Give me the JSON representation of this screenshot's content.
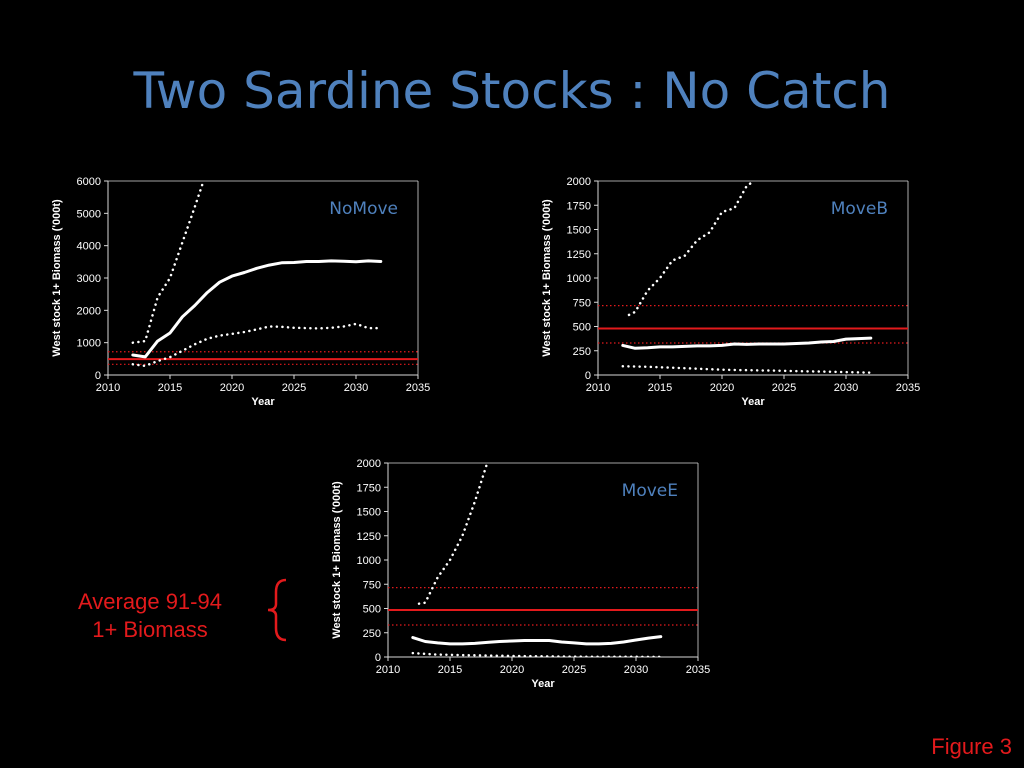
{
  "slide": {
    "title": "Two Sardine Stocks : No Catch",
    "annotation_line1": "Average 91-94",
    "annotation_line2": "1+ Biomass",
    "figure_label": "Figure 3"
  },
  "colors": {
    "background": "#000000",
    "title": "#4f81bd",
    "reference": "#e31a1c",
    "series": "#ffffff",
    "axis": "#d9d9d9"
  },
  "chart_data": [
    {
      "type": "line",
      "panel_label": "NoMove",
      "xlabel": "Year",
      "ylabel": "West stock 1+ Biomass ('000t)",
      "xlim": [
        2010,
        2035
      ],
      "ylim": [
        0,
        6000
      ],
      "xticks": [
        2010,
        2015,
        2020,
        2025,
        2030,
        2035
      ],
      "yticks": [
        0,
        1000,
        2000,
        3000,
        4000,
        5000,
        6000
      ],
      "grid": false,
      "series": [
        {
          "style": "median",
          "x": [
            2012,
            2013,
            2014,
            2015,
            2016,
            2017,
            2018,
            2019,
            2020,
            2021,
            2022,
            2023,
            2024,
            2025,
            2026,
            2027,
            2028,
            2029,
            2030,
            2031,
            2032
          ],
          "y": [
            620,
            560,
            1050,
            1300,
            1800,
            2150,
            2550,
            2870,
            3060,
            3170,
            3300,
            3400,
            3470,
            3480,
            3510,
            3510,
            3530,
            3520,
            3500,
            3530,
            3510
          ]
        },
        {
          "style": "upper",
          "x": [
            2012,
            2013,
            2014,
            2015,
            2016,
            2017,
            2017.7
          ],
          "y": [
            1000,
            1050,
            2400,
            3000,
            4100,
            5200,
            6000
          ]
        },
        {
          "style": "lower",
          "x": [
            2012,
            2013,
            2014,
            2015,
            2016,
            2017,
            2018,
            2019,
            2020,
            2021,
            2022,
            2023,
            2024,
            2025,
            2026,
            2027,
            2028,
            2029,
            2030,
            2031,
            2032
          ],
          "y": [
            330,
            280,
            430,
            550,
            750,
            950,
            1120,
            1220,
            1270,
            1330,
            1410,
            1500,
            1490,
            1460,
            1450,
            1440,
            1460,
            1500,
            1580,
            1450,
            1450
          ]
        }
      ],
      "reference_lines": [
        {
          "style": "solid",
          "y": 490
        },
        {
          "style": "dotted",
          "y": 720
        },
        {
          "style": "dotted",
          "y": 330
        }
      ]
    },
    {
      "type": "line",
      "panel_label": "MoveB",
      "xlabel": "Year",
      "ylabel": "West stock 1+ Biomass ('000t)",
      "xlim": [
        2010,
        2035
      ],
      "ylim": [
        0,
        2000
      ],
      "xticks": [
        2010,
        2015,
        2020,
        2025,
        2030,
        2035
      ],
      "yticks": [
        0,
        250,
        500,
        750,
        1000,
        1250,
        1500,
        1750,
        2000
      ],
      "grid": false,
      "series": [
        {
          "style": "median",
          "x": [
            2012,
            2013,
            2014,
            2015,
            2016,
            2017,
            2018,
            2019,
            2020,
            2021,
            2022,
            2023,
            2024,
            2025,
            2026,
            2027,
            2028,
            2029,
            2030,
            2031,
            2032
          ],
          "y": [
            305,
            275,
            280,
            290,
            290,
            295,
            300,
            300,
            305,
            320,
            315,
            320,
            320,
            320,
            325,
            330,
            340,
            345,
            370,
            375,
            380
          ]
        },
        {
          "style": "upper",
          "x": [
            2012.5,
            2013,
            2014,
            2015,
            2016,
            2017,
            2018,
            2019,
            2020,
            2021,
            2022,
            2022.6
          ],
          "y": [
            620,
            650,
            870,
            1000,
            1180,
            1230,
            1390,
            1470,
            1680,
            1720,
            1950,
            2000
          ]
        },
        {
          "style": "lower",
          "x": [
            2012,
            2014,
            2016,
            2018,
            2020,
            2022,
            2024,
            2026,
            2028,
            2030,
            2032
          ],
          "y": [
            90,
            85,
            75,
            65,
            55,
            50,
            45,
            40,
            35,
            30,
            25
          ]
        }
      ],
      "reference_lines": [
        {
          "style": "solid",
          "y": 480
        },
        {
          "style": "dotted",
          "y": 715
        },
        {
          "style": "dotted",
          "y": 330
        }
      ]
    },
    {
      "type": "line",
      "panel_label": "MoveE",
      "xlabel": "Year",
      "ylabel": "West stock 1+ Biomass ('000t)",
      "xlim": [
        2010,
        2035
      ],
      "ylim": [
        0,
        2000
      ],
      "xticks": [
        2010,
        2015,
        2020,
        2025,
        2030,
        2035
      ],
      "yticks": [
        0,
        250,
        500,
        750,
        1000,
        1250,
        1500,
        1750,
        2000
      ],
      "grid": false,
      "series": [
        {
          "style": "median",
          "x": [
            2012,
            2013,
            2014,
            2015,
            2016,
            2017,
            2018,
            2019,
            2020,
            2021,
            2022,
            2023,
            2024,
            2025,
            2026,
            2027,
            2028,
            2029,
            2030,
            2031,
            2032
          ],
          "y": [
            200,
            160,
            145,
            135,
            135,
            140,
            150,
            160,
            165,
            170,
            170,
            170,
            155,
            145,
            135,
            135,
            140,
            155,
            175,
            195,
            210
          ]
        },
        {
          "style": "upper",
          "x": [
            2012.5,
            2013,
            2014,
            2015,
            2016,
            2017,
            2018
          ],
          "y": [
            550,
            560,
            820,
            1000,
            1250,
            1600,
            2000
          ]
        },
        {
          "style": "lower",
          "x": [
            2012,
            2014,
            2016,
            2018,
            2020,
            2022,
            2024,
            2026,
            2028,
            2030,
            2032
          ],
          "y": [
            40,
            25,
            20,
            15,
            10,
            8,
            5,
            3,
            2,
            2,
            1
          ]
        }
      ],
      "reference_lines": [
        {
          "style": "solid",
          "y": 485
        },
        {
          "style": "dotted",
          "y": 715
        },
        {
          "style": "dotted",
          "y": 330
        }
      ]
    }
  ]
}
